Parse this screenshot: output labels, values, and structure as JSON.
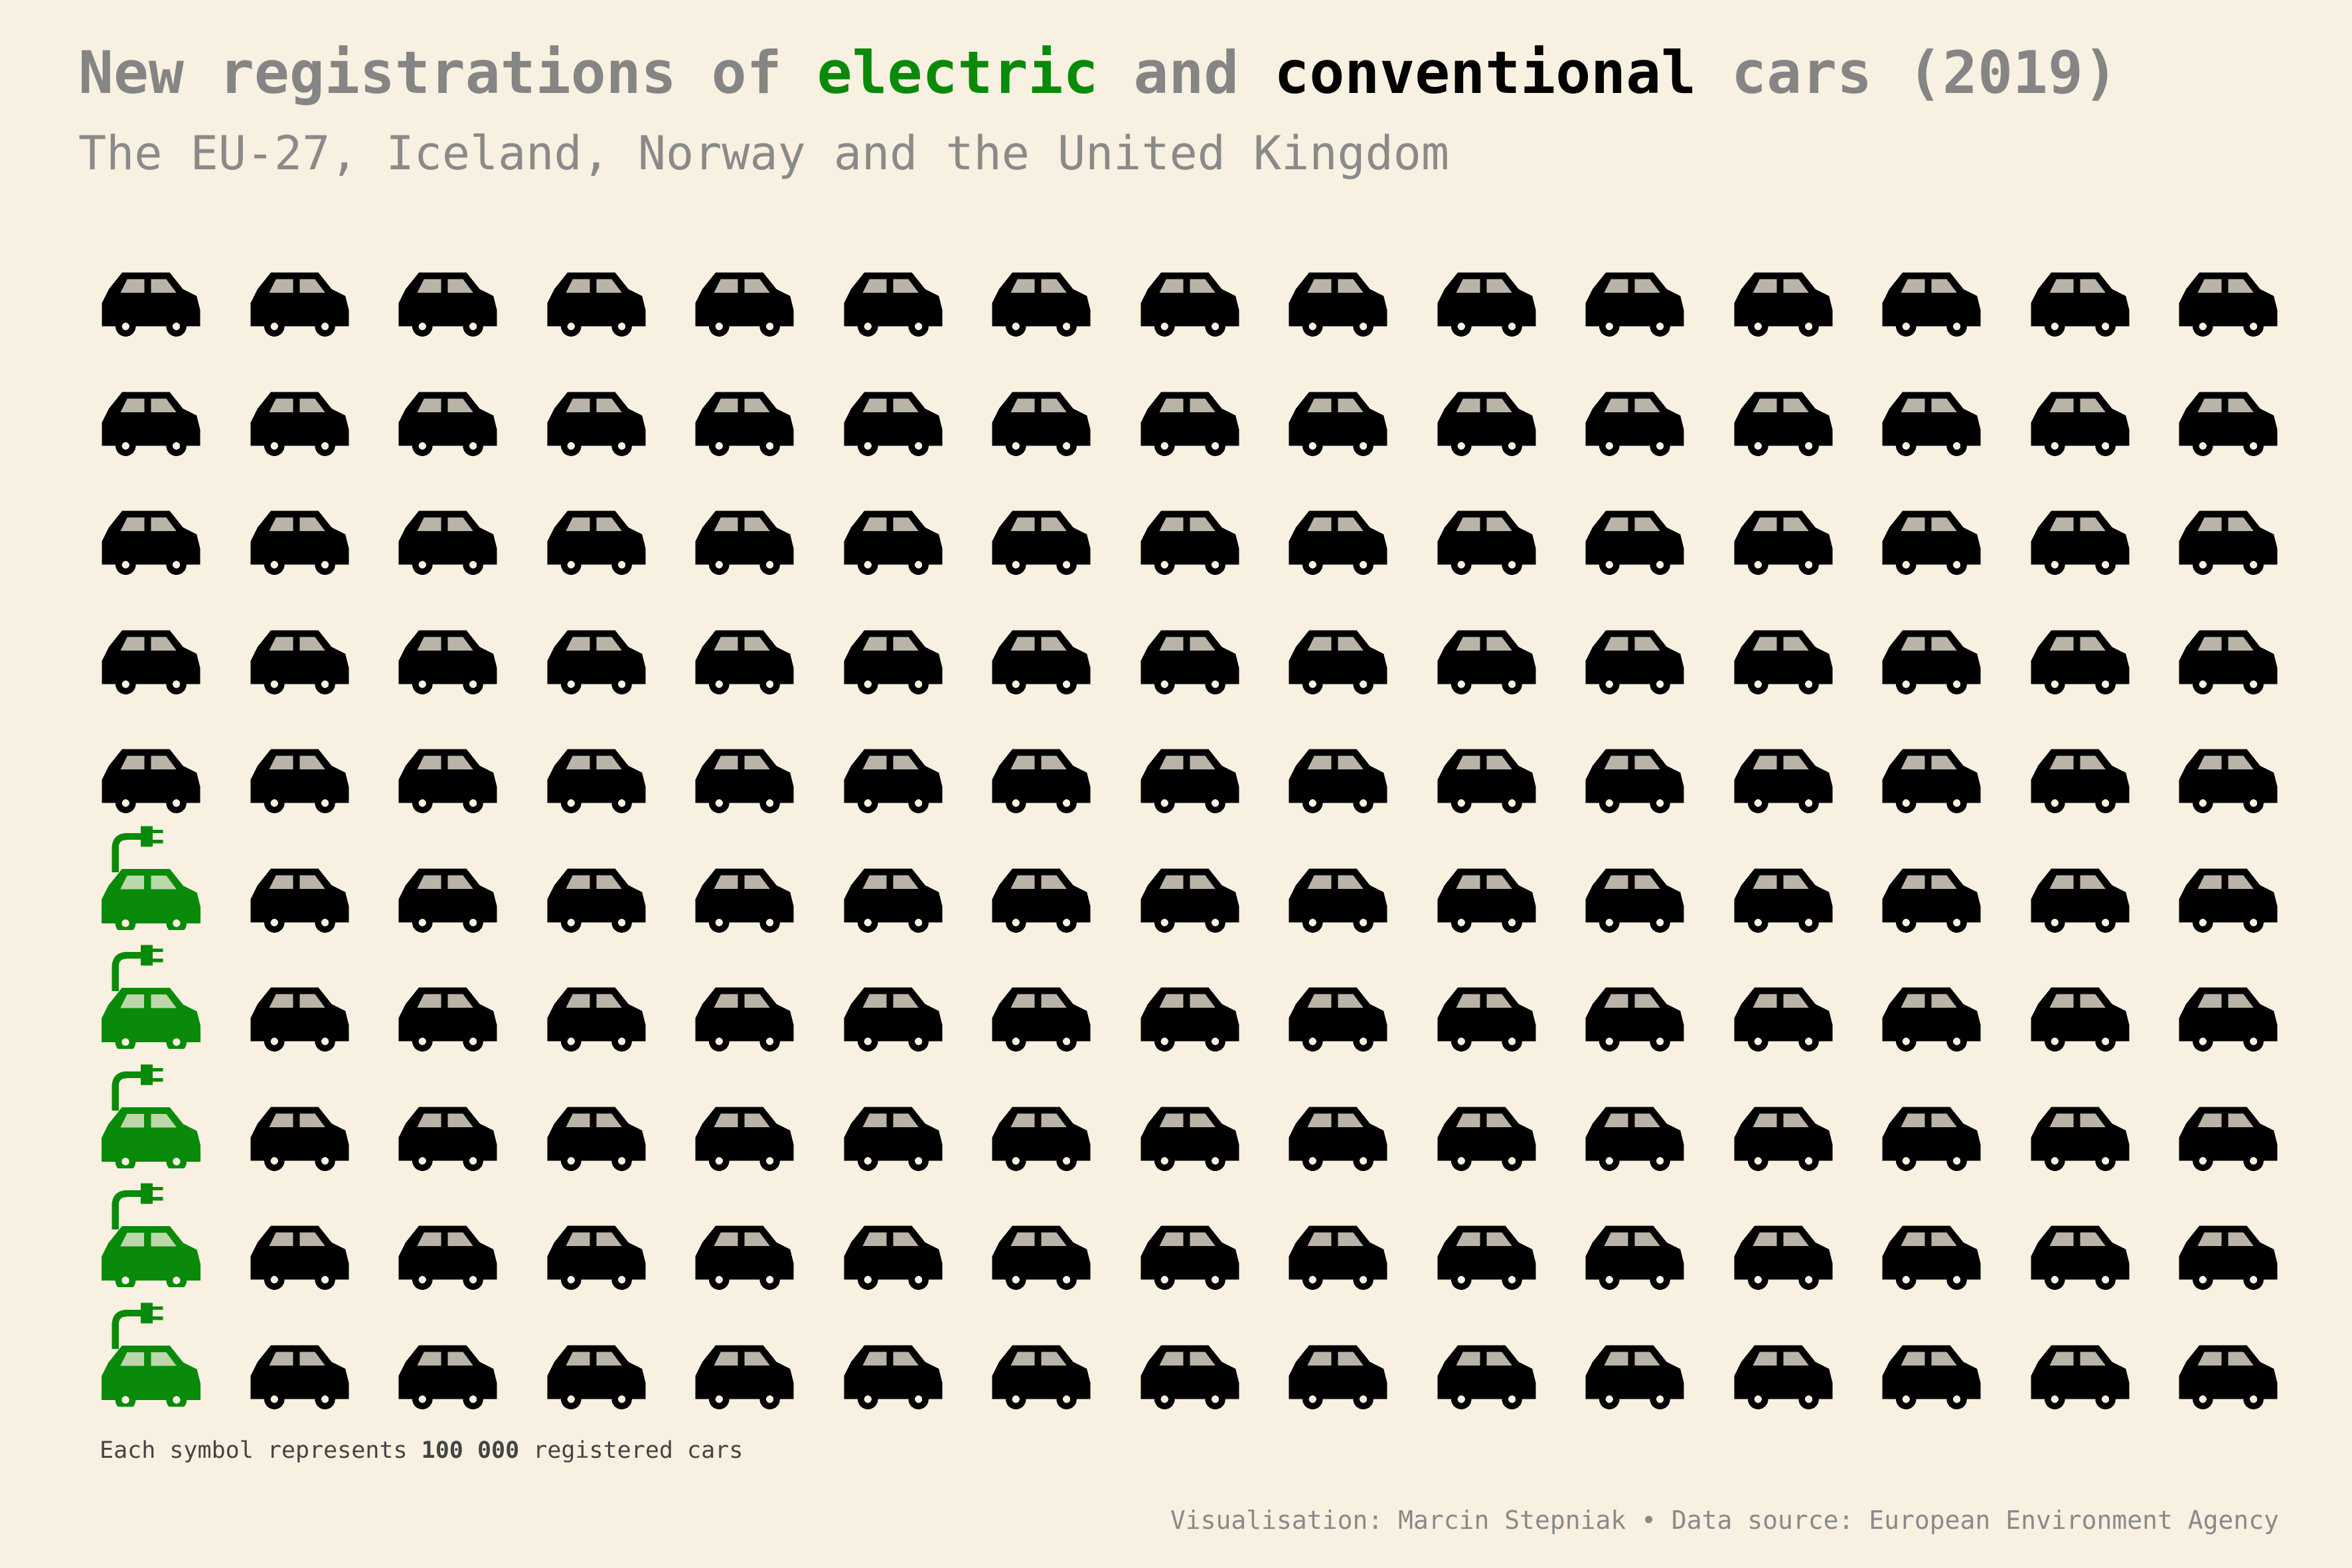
{
  "title": {
    "part1": "New registrations of ",
    "electric": "electric",
    "part2": " and ",
    "conventional": "conventional",
    "part3": " cars (2019)"
  },
  "subtitle": "The EU-27, Iceland, Norway and the United Kingdom",
  "note": {
    "prefix": "Each symbol represents ",
    "unit": "100 000",
    "suffix": " registered cars"
  },
  "credit": "Visualisation: Marcin Stepniak • Data source: European Environment Agency",
  "colors": {
    "electric": "#0a8a0a",
    "conventional": "#000000",
    "background": "#f8f0e0"
  },
  "chart_data": {
    "type": "pictograph",
    "unit_value": 100000,
    "rows": 10,
    "columns": 15,
    "fill_order": "column-first, from bottom-left",
    "series": [
      {
        "name": "electric",
        "symbols": 5,
        "icon": "electric-car-icon"
      },
      {
        "name": "conventional",
        "symbols": 145,
        "icon": "car-icon"
      }
    ]
  }
}
